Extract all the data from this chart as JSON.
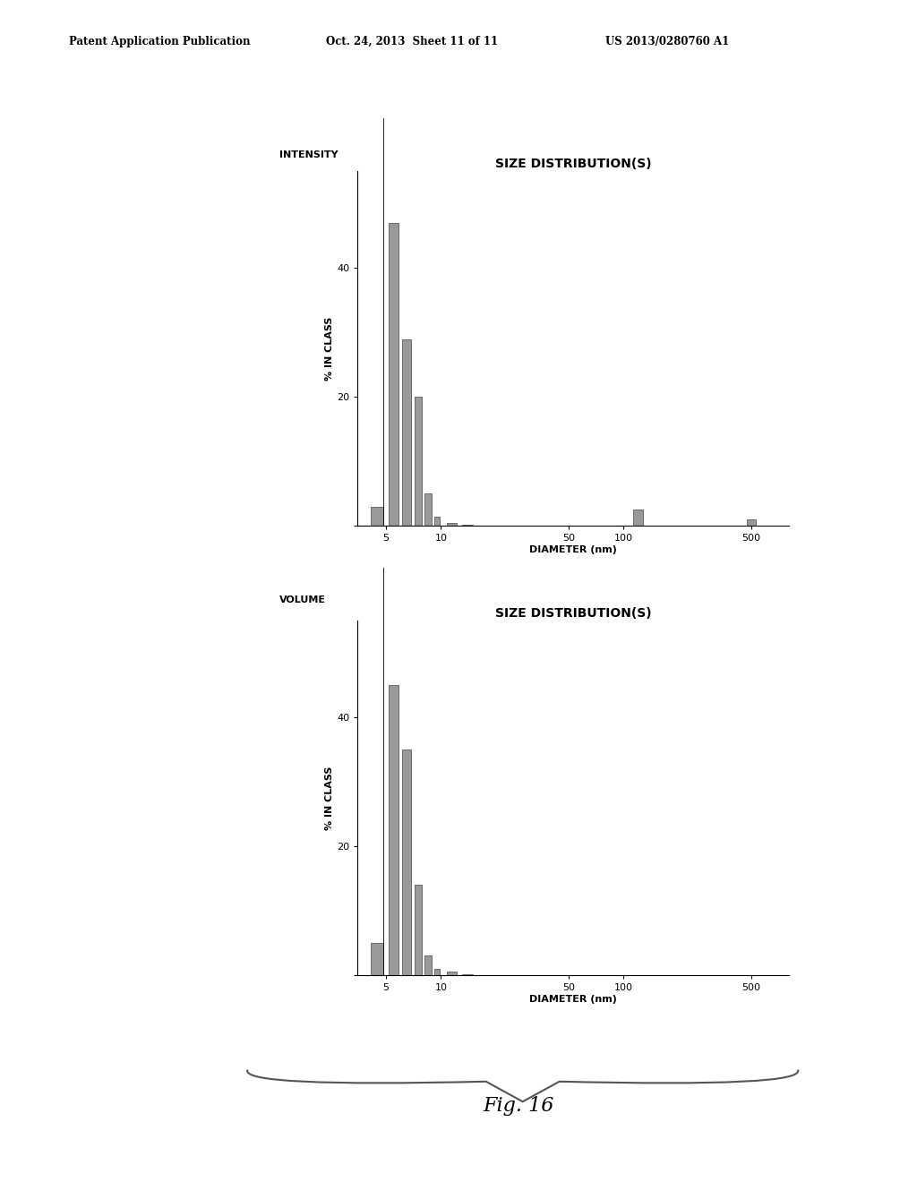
{
  "header_left": "Patent Application Publication",
  "header_mid": "Oct. 24, 2013  Sheet 11 of 11",
  "header_right": "US 2013/0280760 A1",
  "figure_label": "Fig. 16",
  "background_color": "#ffffff",
  "plot1": {
    "label_top_left": "INTENSITY",
    "title": "SIZE DISTRIBUTION(S)",
    "ylabel": "% IN CLASS",
    "xlabel": "DIAMETER (nm)",
    "bar_positions": [
      4.5,
      5.5,
      6.5,
      7.5,
      8.5,
      9.5,
      11.5,
      14.0,
      120.0,
      500.0
    ],
    "bar_heights": [
      3,
      47,
      29,
      20,
      5,
      1.5,
      0.5,
      0.2,
      2.5,
      1.0
    ],
    "bar_widths": [
      0.7,
      0.7,
      0.7,
      0.7,
      0.7,
      0.7,
      1.5,
      2.0,
      15.0,
      60.0
    ],
    "yticks": [
      0,
      20,
      40
    ],
    "ylim": [
      0,
      55
    ],
    "bar_color": "#999999",
    "bar_edge_color": "#444444"
  },
  "plot2": {
    "label_top_left": "VOLUME",
    "title": "SIZE DISTRIBUTION(S)",
    "ylabel": "% IN CLASS",
    "xlabel": "DIAMETER (nm)",
    "bar_positions": [
      4.5,
      5.5,
      6.5,
      7.5,
      8.5,
      9.5,
      11.5,
      14.0
    ],
    "bar_heights": [
      5,
      45,
      35,
      14,
      3,
      1,
      0.5,
      0.2
    ],
    "bar_widths": [
      0.7,
      0.7,
      0.7,
      0.7,
      0.7,
      0.7,
      1.5,
      2.0
    ],
    "yticks": [
      0,
      20,
      40
    ],
    "ylim": [
      0,
      55
    ],
    "bar_color": "#999999",
    "bar_edge_color": "#444444"
  }
}
